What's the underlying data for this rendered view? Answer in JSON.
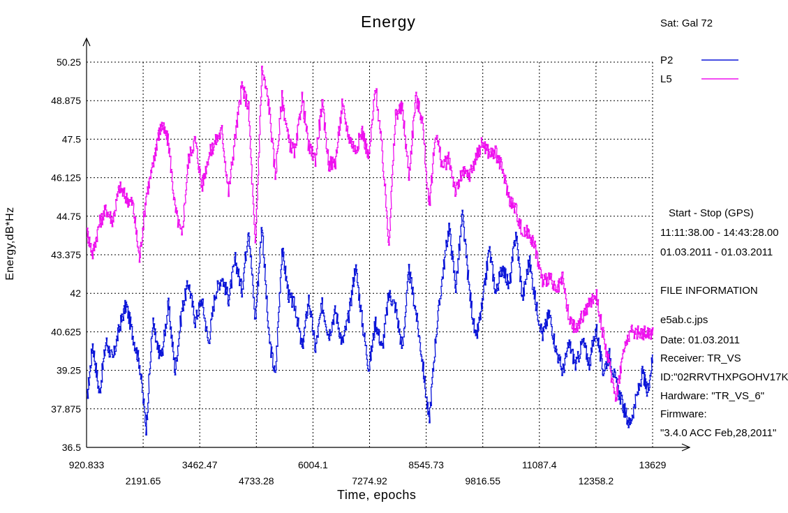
{
  "chart_data": {
    "type": "line",
    "title": "Energy",
    "xlabel": "Time, epochs",
    "ylabel": "Energy,dB*Hz",
    "xlim": [
      920.833,
      13629
    ],
    "ylim": [
      36.5,
      50.25
    ],
    "x_ticks": [
      "920.833",
      "2191.65",
      "3462.47",
      "4733.28",
      "6004.1",
      "7274.92",
      "8545.73",
      "9816.55",
      "11087.4",
      "12358.2",
      "13629"
    ],
    "y_ticks": [
      "36.5",
      "37.875",
      "39.25",
      "40.625",
      "42",
      "43.375",
      "44.75",
      "46.125",
      "47.5",
      "48.875",
      "50.25"
    ],
    "grid": true,
    "legend_position": "top-right",
    "series": [
      {
        "name": "P2",
        "color": "#0a14d8",
        "x": [
          920.8,
          1050,
          1200,
          1350,
          1500,
          1650,
          1800,
          1950,
          2100,
          2250,
          2400,
          2500,
          2600,
          2750,
          2900,
          3050,
          3200,
          3350,
          3500,
          3650,
          3800,
          3950,
          4100,
          4250,
          4400,
          4550,
          4700,
          4850,
          5000,
          5150,
          5300,
          5450,
          5600,
          5750,
          5900,
          6050,
          6200,
          6350,
          6500,
          6650,
          6800,
          6950,
          7100,
          7250,
          7400,
          7550,
          7700,
          7850,
          8000,
          8150,
          8300,
          8450,
          8600,
          8750,
          8900,
          9050,
          9200,
          9350,
          9500,
          9650,
          9800,
          9950,
          10100,
          10250,
          10400,
          10550,
          10700,
          10850,
          11000,
          11150,
          11300,
          11450,
          11600,
          11750,
          11900,
          12050,
          12200,
          12350,
          12500,
          12650,
          12800,
          12950,
          13100,
          13250,
          13400,
          13500,
          13629
        ],
        "y": [
          38.2,
          40.2,
          38.4,
          40.3,
          39.6,
          40.8,
          41.6,
          40.5,
          39.5,
          37.2,
          41.0,
          40.0,
          39.8,
          41.6,
          39.2,
          41.4,
          42.4,
          41.0,
          41.8,
          40.2,
          42.0,
          42.6,
          41.8,
          43.2,
          42.1,
          44.4,
          41.0,
          44.5,
          40.5,
          39.0,
          43.6,
          41.9,
          41.5,
          40.0,
          41.8,
          40.0,
          41.6,
          40.5,
          41.4,
          40.2,
          41.2,
          43.0,
          41.0,
          39.3,
          41.0,
          40.0,
          42.0,
          41.5,
          40.0,
          42.8,
          41.4,
          39.6,
          37.4,
          40.4,
          42.6,
          44.4,
          42.2,
          44.8,
          42.2,
          40.3,
          41.6,
          43.6,
          42.0,
          43.0,
          42.2,
          44.2,
          41.8,
          43.2,
          41.6,
          40.5,
          41.3,
          40.0,
          39.2,
          40.2,
          39.4,
          40.3,
          39.5,
          40.8,
          39.2,
          39.8,
          38.8,
          38.0,
          37.3,
          38.2,
          39.2,
          38.4,
          39.8
        ]
      },
      {
        "name": "L5",
        "color": "#ee10ee",
        "x": [
          920.8,
          1050,
          1200,
          1350,
          1500,
          1650,
          1800,
          1950,
          2100,
          2250,
          2400,
          2500,
          2600,
          2750,
          2900,
          3050,
          3200,
          3350,
          3500,
          3650,
          3800,
          3950,
          4100,
          4250,
          4400,
          4550,
          4700,
          4850,
          5000,
          5150,
          5300,
          5450,
          5600,
          5750,
          5900,
          6050,
          6200,
          6350,
          6500,
          6650,
          6800,
          6950,
          7100,
          7250,
          7400,
          7550,
          7700,
          7850,
          8000,
          8150,
          8300,
          8450,
          8600,
          8750,
          8900,
          9050,
          9200,
          9350,
          9500,
          9650,
          9800,
          9950,
          10100,
          10250,
          10400,
          10550,
          10700,
          10850,
          11000,
          11150,
          11300,
          11450,
          11600,
          11750,
          11900,
          12050,
          12200,
          12350,
          12500,
          12650,
          12800,
          12950,
          13100,
          13250,
          13400,
          13500,
          13629
        ],
        "y": [
          44.2,
          43.4,
          44.5,
          45.0,
          44.6,
          45.8,
          45.4,
          45.2,
          43.2,
          45.5,
          46.5,
          47.5,
          48.0,
          47.4,
          45.0,
          44.0,
          46.8,
          47.5,
          45.8,
          46.9,
          47.4,
          47.8,
          45.6,
          47.6,
          49.4,
          48.6,
          43.6,
          50.0,
          48.8,
          46.2,
          49.0,
          47.4,
          47.0,
          49.0,
          47.2,
          46.8,
          48.8,
          46.6,
          46.7,
          48.7,
          47.6,
          47.1,
          47.8,
          46.8,
          49.4,
          47.0,
          43.8,
          48.4,
          48.6,
          46.2,
          49.0,
          48.2,
          45.0,
          47.8,
          46.5,
          46.8,
          45.6,
          46.3,
          46.2,
          46.8,
          47.4,
          47.0,
          47.0,
          46.4,
          45.4,
          45.0,
          44.1,
          44.2,
          43.5,
          42.4,
          42.6,
          42.0,
          42.5,
          41.0,
          40.7,
          41.2,
          41.6,
          42.0,
          40.6,
          39.4,
          38.3,
          39.8,
          40.6,
          40.6,
          40.6,
          40.6,
          40.6
        ]
      }
    ]
  },
  "info": {
    "sat": "Sat: Gal  72",
    "start_stop_label": "Start  -  Stop  (GPS)",
    "time_range": "11:11:38.00 - 14:43:28.00",
    "date_range": "01.03.2011 - 01.03.2011",
    "file_info_heading": "FILE INFORMATION",
    "file_name": "e5ab.c.jps",
    "date": "Date: 01.03.2011",
    "receiver": "Receiver: TR_VS",
    "id": "ID:\"02RRVTHXPGOHV17K",
    "hardware": "Hardware: \"TR_VS_6\"",
    "firmware_label": "Firmware:",
    "firmware_value": "\"3.4.0 ACC Feb,28,2011\""
  }
}
